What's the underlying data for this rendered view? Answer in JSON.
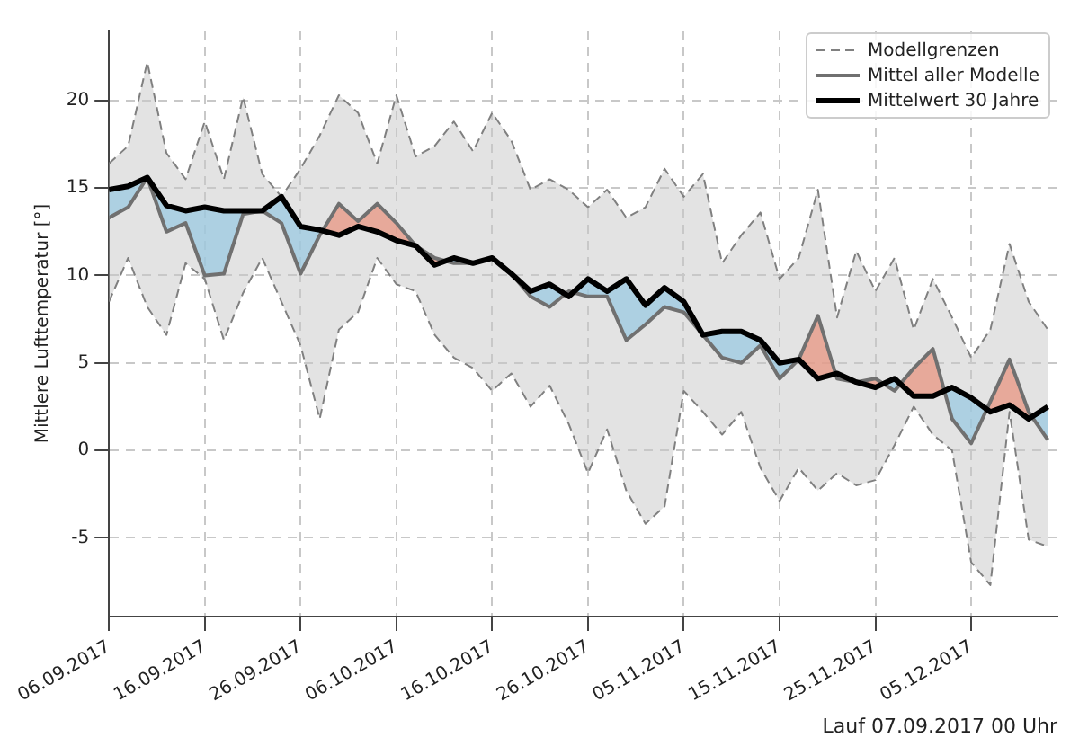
{
  "chart_data": {
    "type": "line",
    "ylabel": "Mittlere Lufttemperatur [°]",
    "annotations": [
      "Lauf 07.09.2017 00 Uhr"
    ],
    "x": [
      "2017-09-06",
      "2017-09-08",
      "2017-09-10",
      "2017-09-12",
      "2017-09-14",
      "2017-09-16",
      "2017-09-18",
      "2017-09-20",
      "2017-09-22",
      "2017-09-24",
      "2017-09-26",
      "2017-09-28",
      "2017-09-30",
      "2017-10-02",
      "2017-10-04",
      "2017-10-06",
      "2017-10-08",
      "2017-10-10",
      "2017-10-12",
      "2017-10-14",
      "2017-10-16",
      "2017-10-18",
      "2017-10-20",
      "2017-10-22",
      "2017-10-24",
      "2017-10-26",
      "2017-10-28",
      "2017-10-30",
      "2017-11-01",
      "2017-11-03",
      "2017-11-05",
      "2017-11-07",
      "2017-11-09",
      "2017-11-11",
      "2017-11-13",
      "2017-11-15",
      "2017-11-17",
      "2017-11-19",
      "2017-11-21",
      "2017-11-23",
      "2017-11-25",
      "2017-11-27",
      "2017-11-29",
      "2017-12-01",
      "2017-12-03",
      "2017-12-05",
      "2017-12-07",
      "2017-12-09",
      "2017-12-11",
      "2017-12-13"
    ],
    "series": [
      {
        "name": "Modellgrenzen",
        "color": "#808080",
        "line_style": "dashed",
        "values": [
          16.4,
          17.4,
          22.2,
          17,
          15.5,
          18.8,
          15.5,
          20.2,
          15.8,
          14.5,
          16.1,
          18,
          20.3,
          19.3,
          16.4,
          20.3,
          16.8,
          17.4,
          18.8,
          17.1,
          19.3,
          17.7,
          14.9,
          15.5,
          14.9,
          13.9,
          14.9,
          13.3,
          13.9,
          16.1,
          14.5,
          15.8,
          10.7,
          12.3,
          13.6,
          9.8,
          11,
          14.9,
          7.6,
          11.4,
          9.1,
          11,
          6.9,
          9.8,
          7.6,
          5.3,
          6.9,
          11.8,
          8.5,
          6.9
        ]
      },
      {
        "color": "#808080",
        "line_style": "dashed",
        "values": [
          8.5,
          11,
          8.2,
          6.6,
          10.7,
          9.8,
          6.3,
          9,
          11,
          8.5,
          6,
          1.8,
          6.9,
          7.9,
          11,
          9.5,
          9.1,
          6.6,
          5.3,
          4.7,
          3.4,
          4.4,
          2.5,
          3.7,
          1.5,
          -1.3,
          1.2,
          -2.3,
          -4.2,
          -3.2,
          3.4,
          2.2,
          0.9,
          2.2,
          -1,
          -2.9,
          -1,
          -2.3,
          -1.3,
          -2,
          -1.7,
          0.3,
          2.5,
          0.9,
          0,
          -6.4,
          -7.7,
          2.2,
          -5.1,
          -5.5
        ]
      },
      {
        "name": "Mittel aller Modelle",
        "color": "#707070",
        "line_style": "solid",
        "upper": [
          16.4,
          17.4,
          22.2,
          17,
          15.5,
          18.8,
          15.5,
          20.2,
          15.8,
          14.5,
          16.1,
          18,
          20.3,
          19.3,
          16.4,
          20.3,
          16.8,
          17.4,
          18.8,
          17.1,
          19.3,
          17.7,
          14.9,
          15.5,
          14.9,
          13.9,
          14.9,
          13.3,
          13.9,
          16.1,
          14.5,
          15.8,
          10.7,
          12.3,
          13.6,
          9.8,
          11,
          14.9,
          7.6,
          11.4,
          9.1,
          11,
          6.9,
          9.8,
          7.6,
          5.3,
          6.9,
          11.8,
          8.5,
          6.9
        ],
        "lower": [
          8.5,
          11,
          8.2,
          6.6,
          10.7,
          9.8,
          6.3,
          9,
          11,
          8.5,
          6,
          1.8,
          6.9,
          7.9,
          11,
          9.5,
          9.1,
          6.6,
          5.3,
          4.7,
          3.4,
          4.4,
          2.5,
          3.7,
          1.5,
          -1.3,
          1.2,
          -2.3,
          -4.2,
          -3.2,
          3.4,
          2.2,
          0.9,
          2.2,
          -1,
          -2.9,
          -1,
          -2.3,
          -1.3,
          -2,
          -1.7,
          0.3,
          2.5,
          0.9,
          0,
          -6.4,
          -7.7,
          2.2,
          -5.1,
          -5.5
        ],
        "values": [
          13.3,
          13.9,
          15.6,
          12.5,
          13,
          10,
          10.1,
          13.5,
          13.7,
          13,
          10.1,
          12.3,
          14.1,
          13.1,
          14.1,
          13,
          11.7,
          11,
          10.7,
          10.7,
          11,
          10.1,
          8.8,
          8.2,
          9.1,
          8.8,
          8.8,
          6.3,
          7.2,
          8.2,
          7.9,
          6.6,
          5.3,
          5,
          6,
          4.1,
          5.2,
          7.7,
          4.1,
          3.9,
          4.1,
          3.4,
          4.7,
          5.8,
          1.8,
          0.4,
          2.8,
          5.2,
          2.2,
          0.6
        ]
      },
      {
        "name": "Mittelwert 30 Jahre",
        "color": "#000000",
        "line_style": "solid",
        "values": [
          14.9,
          15.1,
          15.6,
          14,
          13.7,
          13.9,
          13.7,
          13.7,
          13.7,
          14.5,
          12.8,
          12.6,
          12.3,
          12.8,
          12.5,
          12,
          11.7,
          10.6,
          11,
          10.7,
          11,
          10.1,
          9.1,
          9.5,
          8.8,
          9.8,
          9.1,
          9.8,
          8.3,
          9.3,
          8.5,
          6.6,
          6.8,
          6.8,
          6.3,
          5,
          5.2,
          4.1,
          4.4,
          3.9,
          3.6,
          4.1,
          3.1,
          3.1,
          3.6,
          3,
          2.2,
          2.6,
          1.8,
          2.5
        ]
      }
    ],
    "xlim": [
      "2017-09-06",
      "2017-12-14"
    ],
    "xticks": [
      {
        "value": "2017-09-06",
        "label": "06.09.2017"
      },
      {
        "value": "2017-09-16",
        "label": "16.09.2017"
      },
      {
        "value": "2017-09-26",
        "label": "26.09.2017"
      },
      {
        "value": "2017-10-06",
        "label": "06.10.2017"
      },
      {
        "value": "2017-10-16",
        "label": "16.10.2017"
      },
      {
        "value": "2017-10-26",
        "label": "26.10.2017"
      },
      {
        "value": "2017-11-05",
        "label": "05.11.2017"
      },
      {
        "value": "2017-11-15",
        "label": "15.11.2017"
      },
      {
        "value": "2017-11-25",
        "label": "25.11.2017"
      },
      {
        "value": "2017-12-05",
        "label": "05.12.2017"
      }
    ],
    "ylim": [
      -9.5,
      24
    ],
    "yticks": [
      -5,
      0,
      5,
      10,
      15,
      20
    ],
    "grid": true,
    "legend": "top right",
    "marker": "none"
  }
}
